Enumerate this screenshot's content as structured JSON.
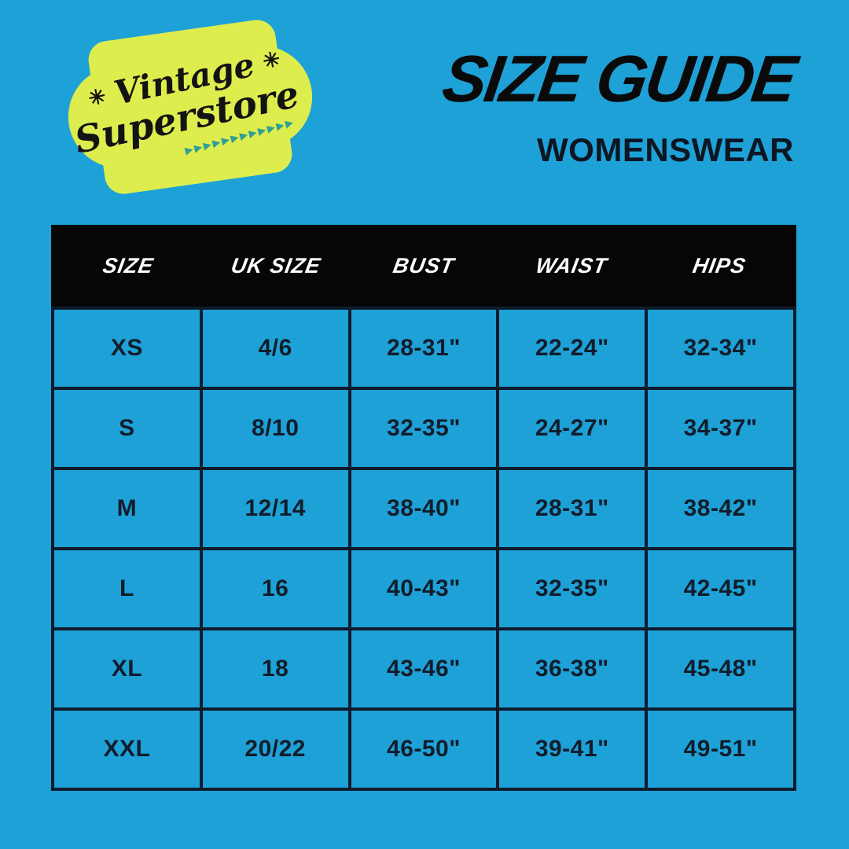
{
  "colors": {
    "background": "#1EA1D7",
    "badge": "#DEED4E",
    "logo_text": "#131313",
    "triangle": "#2F9E93",
    "title_text": "#0A0A0A",
    "table_header_bg": "#060606",
    "table_header_text": "#FFFFFF",
    "grid_border": "#0E1B2C",
    "cell_text": "#111D2B"
  },
  "logo": {
    "line1": "Vintage",
    "line2": "Superstore",
    "sparkle": "✳",
    "triangles": "▶▶▶▶▶▶▶▶▶▶▶▶"
  },
  "header": {
    "title": "SIZE GUIDE",
    "subtitle": "WOMENSWEAR"
  },
  "table": {
    "columns": [
      "SIZE",
      "UK SIZE",
      "BUST",
      "WAIST",
      "HIPS"
    ],
    "rows": [
      [
        "XS",
        "4/6",
        "28-31\"",
        "22-24\"",
        "32-34\""
      ],
      [
        "S",
        "8/10",
        "32-35\"",
        "24-27\"",
        "34-37\""
      ],
      [
        "M",
        "12/14",
        "38-40\"",
        "28-31\"",
        "38-42\""
      ],
      [
        "L",
        "16",
        "40-43\"",
        "32-35\"",
        "42-45\""
      ],
      [
        "XL",
        "18",
        "43-46\"",
        "36-38\"",
        "45-48\""
      ],
      [
        "XXL",
        "20/22",
        "46-50\"",
        "39-41\"",
        "49-51\""
      ]
    ]
  }
}
